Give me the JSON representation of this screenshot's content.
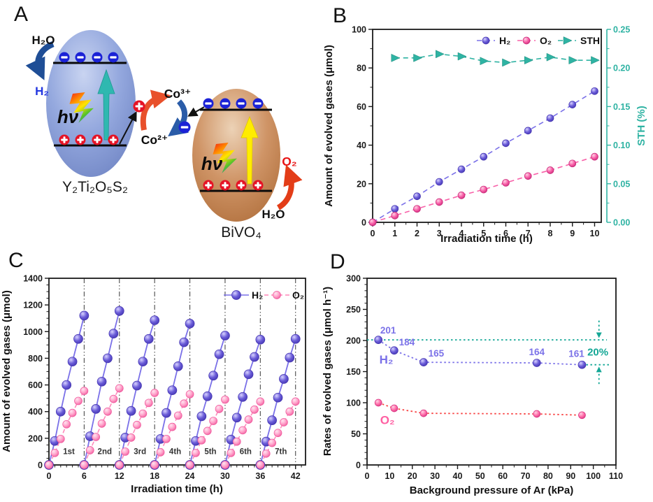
{
  "panels": {
    "a": "A",
    "b": "B",
    "c": "C",
    "d": "D"
  },
  "diagram": {
    "h2o": "H₂O",
    "h2": "H₂",
    "hv": "hν",
    "particle1": "Y₂Ti₂O₅S₂",
    "particle2": "BiVO₄",
    "co3": "Co³⁺",
    "co2": "Co²⁺",
    "o2": "O₂",
    "colors": {
      "particle1_body": "#94a8de",
      "particle2_body": "#cf9466",
      "electron": "#1b22d6",
      "hole": "#e51325",
      "excite_arrow_1": "#2fb8b0",
      "excite_arrow_2": "#ffec00",
      "water_arrow": "#1f4e96",
      "o2_arrow": "#e33d18",
      "co_red_arrow": "#e8502b",
      "co_blue_arrow": "#2a5ca8",
      "h2_label": "#2236e0",
      "o2_label": "#e81414"
    }
  },
  "chart_data": [
    {
      "id": "B",
      "type": "line",
      "xlabel": "Irradiation time (h)",
      "ylabel": "Amount of evolved gases (μmol)",
      "y2label": "STH (%)",
      "xlim": [
        0,
        10.3
      ],
      "ylim": [
        0,
        100
      ],
      "y2lim": [
        0,
        0.25
      ],
      "xticks": [
        0,
        1,
        2,
        3,
        4,
        5,
        6,
        7,
        8,
        9,
        10
      ],
      "yticks": [
        0,
        20,
        40,
        60,
        80,
        100
      ],
      "y2tickvals": [
        0,
        0.05,
        0.1,
        0.15,
        0.2,
        0.25
      ],
      "y2ticklabels": [
        "0.00",
        "0.05",
        "0.10",
        "0.15",
        "0.20",
        "0.25"
      ],
      "axis2_color": "#2fb3a3",
      "grid": false,
      "legend_position": "top-inside",
      "series": [
        {
          "name": "H₂",
          "x": [
            0,
            1,
            2,
            3,
            4,
            5,
            6,
            7,
            8,
            9,
            10
          ],
          "y": [
            0,
            7,
            13.5,
            21,
            27.5,
            34,
            41,
            47.5,
            54,
            61,
            68
          ],
          "line": "#7a70e8",
          "dash": "7 5",
          "marker": "sphere",
          "r": 5,
          "grad": [
            "#d8d2ff",
            "#6a5cd8",
            "#4334b0"
          ]
        },
        {
          "name": "O₂",
          "x": [
            0,
            1,
            2,
            3,
            4,
            5,
            6,
            7,
            8,
            9,
            10
          ],
          "y": [
            0,
            3.5,
            7,
            10.5,
            14,
            17,
            20.5,
            24,
            27,
            30.5,
            34
          ],
          "line": "#f860a8",
          "dash": "7 5",
          "marker": "sphere",
          "r": 5,
          "grad": [
            "#ffd0e4",
            "#f860a8",
            "#c82878"
          ]
        },
        {
          "name": "STH",
          "axis": "y2",
          "x": [
            1,
            2,
            3,
            4,
            5,
            6,
            7,
            8,
            9,
            10
          ],
          "y": [
            0.213,
            0.213,
            0.218,
            0.215,
            0.209,
            0.207,
            0.21,
            0.214,
            0.21,
            0.21
          ],
          "line": "#2fb3a3",
          "dash": "7 5",
          "marker": "triangle"
        }
      ]
    },
    {
      "id": "C",
      "type": "line",
      "xlabel": "Irradiation time (h)",
      "ylabel": "Amount of evolved gases (μmol)",
      "xlim": [
        0,
        43.7
      ],
      "ylim": [
        0,
        1400
      ],
      "xticks": [
        0,
        6,
        12,
        18,
        24,
        30,
        36,
        42
      ],
      "yticks": [
        0,
        200,
        400,
        600,
        800,
        1000,
        1200,
        1400
      ],
      "vlines": [
        6,
        12,
        18,
        24,
        30,
        36,
        42
      ],
      "grid": false,
      "legend_position": "top-right-inside",
      "cycle_labels": [
        {
          "t": "1st",
          "x": 3.4,
          "y": 80
        },
        {
          "t": "2nd",
          "x": 9.5,
          "y": 80
        },
        {
          "t": "3rd",
          "x": 15.5,
          "y": 80
        },
        {
          "t": "4th",
          "x": 21.5,
          "y": 80
        },
        {
          "t": "5th",
          "x": 27.5,
          "y": 80
        },
        {
          "t": "6th",
          "x": 33.5,
          "y": 80
        },
        {
          "t": "7th",
          "x": 39.5,
          "y": 80
        }
      ],
      "series": [
        {
          "name": "H₂",
          "cycle_len": 6,
          "cycles": [
            [
              0,
              180,
              400,
              600,
              775,
              945,
              1120
            ],
            [
              0,
              215,
              420,
              625,
              800,
              985,
              1155
            ],
            [
              0,
              205,
              405,
              595,
              775,
              945,
              1085
            ],
            [
              0,
              195,
              390,
              560,
              740,
              920,
              1060
            ],
            [
              0,
              180,
              365,
              515,
              670,
              830,
              970
            ],
            [
              0,
              190,
              355,
              510,
              680,
              810,
              940
            ],
            [
              0,
              175,
              335,
              505,
              645,
              805,
              945
            ]
          ],
          "line": "#7a70e8",
          "lw": 1.8,
          "marker": "sphere",
          "r": 6.5,
          "grad": [
            "#d8d2ff",
            "#6a5cd8",
            "#4334b0"
          ]
        },
        {
          "name": "O₂",
          "cycle_len": 6,
          "cycles": [
            [
              0,
              90,
              195,
              305,
              390,
              480,
              555
            ],
            [
              0,
              110,
              210,
              310,
              400,
              495,
              575
            ],
            [
              0,
              100,
              205,
              300,
              385,
              465,
              540
            ],
            [
              0,
              95,
              195,
              285,
              370,
              460,
              530
            ],
            [
              0,
              90,
              185,
              255,
              330,
              420,
              490
            ],
            [
              0,
              90,
              175,
              260,
              340,
              415,
              475
            ],
            [
              0,
              85,
              165,
              240,
              320,
              400,
              475
            ]
          ],
          "line": "#ff85b8",
          "dash": "6 4",
          "lw": 1.5,
          "marker": "sphere",
          "r": 5.5,
          "grad": [
            "#ffe4f0",
            "#ffa2ca",
            "#f0589c"
          ]
        }
      ]
    },
    {
      "id": "D",
      "type": "scatter",
      "xlabel": "Background pressure of Ar (kPa)",
      "ylabel": "Rates of evolved gases (μmol h⁻¹)",
      "xlim": [
        0,
        110
      ],
      "ylim": [
        0,
        300
      ],
      "xticks": [
        0,
        10,
        20,
        30,
        40,
        50,
        60,
        70,
        80,
        90,
        100,
        110
      ],
      "yticks": [
        0,
        50,
        100,
        150,
        200,
        250,
        300
      ],
      "grid": false,
      "series": [
        {
          "name": "H₂",
          "x": [
            5,
            12,
            25,
            75,
            95
          ],
          "y": [
            201,
            184,
            165,
            164,
            161
          ],
          "line": "#7a70e8",
          "dash": "2.5 3.5",
          "lw": 1.8,
          "marker": "sphere",
          "r": 5.5,
          "grad": [
            "#d8d2ff",
            "#6a5cd8",
            "#4334b0"
          ],
          "labels": [
            "201",
            "184",
            "165",
            "164",
            "161"
          ],
          "label_color": "#7b72e8",
          "label_offsets": [
            [
              14,
              -9
            ],
            [
              18,
              -7
            ],
            [
              18,
              -8
            ],
            [
              0,
              -11
            ],
            [
              -8,
              -11
            ]
          ]
        },
        {
          "name": "O₂",
          "x": [
            5,
            12,
            25,
            75,
            95
          ],
          "y": [
            100,
            91,
            83,
            82,
            80
          ],
          "line": "#f84444",
          "dash": "2.5 3.5",
          "lw": 1.8,
          "marker": "sphere",
          "r": 5,
          "grad": [
            "#ffd0e4",
            "#ff70aa",
            "#d83080"
          ]
        }
      ],
      "annots": [
        {
          "t": "hline",
          "y": 201,
          "x1": 0,
          "x2": 106,
          "color": "#14a796"
        },
        {
          "t": "hline",
          "y": 161,
          "x1": 95,
          "x2": 107,
          "color": "#14a796"
        },
        {
          "t": "arrow",
          "x": 102.5,
          "y1": 232,
          "y2": 204,
          "color": "#14a796"
        },
        {
          "t": "arrow",
          "x": 102.5,
          "y1": 130,
          "y2": 158,
          "color": "#14a796"
        },
        {
          "t": "text",
          "text": "20%",
          "x": 102,
          "y": 176,
          "color": "#14a796",
          "size": 15,
          "weight": 700
        },
        {
          "t": "text",
          "text": "H₂",
          "x": 8.5,
          "y": 163,
          "color": "#7a70e8",
          "size": 17,
          "weight": 700
        },
        {
          "t": "text",
          "text": "O₂",
          "x": 9,
          "y": 66,
          "color": "#ff5fa2",
          "size": 17,
          "weight": 700
        }
      ]
    }
  ]
}
